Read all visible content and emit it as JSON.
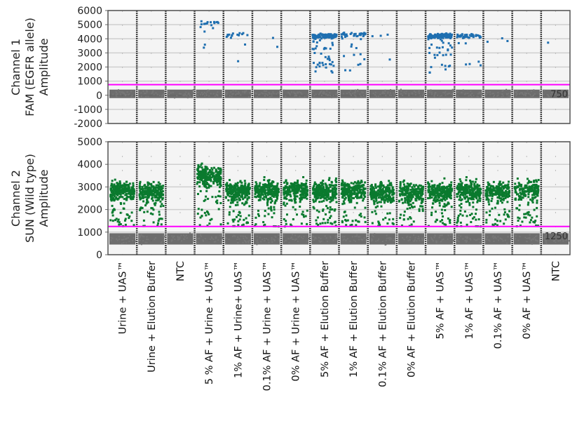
{
  "chart_data": [
    {
      "type": "scatter",
      "ylabel_lines": [
        "Channel 1",
        "FAM (EGFR allele)",
        "Amplitude"
      ],
      "ylim": [
        -2000,
        6000
      ],
      "yticks": [
        "6000",
        "5000",
        "4000",
        "3000",
        "2000",
        "1000",
        "0",
        "-1000",
        "-2000"
      ],
      "threshold": 750,
      "threshold_label": "750",
      "threshold_color": "#ff00ff",
      "positive_color": "#1f6fb0",
      "negative_color": "#555555",
      "negative_level": 100,
      "wells_positive": [
        {
          "level": 0,
          "count": 0
        },
        {
          "level": 0,
          "count": 0
        },
        {
          "level": 0,
          "count": 0
        },
        {
          "level": 5100,
          "count": 18
        },
        {
          "level": 4300,
          "count": 16
        },
        {
          "level": 0,
          "count": 2
        },
        {
          "level": 0,
          "count": 0
        },
        {
          "level": 4200,
          "count": 160
        },
        {
          "level": 4300,
          "count": 45
        },
        {
          "level": 4200,
          "count": 4
        },
        {
          "level": 0,
          "count": 0
        },
        {
          "level": 4200,
          "count": 150
        },
        {
          "level": 4200,
          "count": 50
        },
        {
          "level": 3900,
          "count": 3
        },
        {
          "level": 0,
          "count": 0
        },
        {
          "level": 4200,
          "count": 1
        }
      ]
    },
    {
      "type": "scatter",
      "ylabel_lines": [
        "Channel 2",
        "SUN (Wild type)",
        "Amplitude"
      ],
      "ylim": [
        0,
        5000
      ],
      "yticks": [
        "5000",
        "4000",
        "3000",
        "2000",
        "1000",
        "0"
      ],
      "threshold": 1250,
      "threshold_label": "1250",
      "threshold_color": "#ff00ff",
      "positive_color": "#0a7a2e",
      "negative_color": "#555555",
      "negative_level": 700,
      "wells_positive": [
        {
          "level": 2800,
          "count": 260
        },
        {
          "level": 2800,
          "count": 240
        },
        {
          "level": 0,
          "count": 0
        },
        {
          "level": 3500,
          "count": 260
        },
        {
          "level": 2850,
          "count": 260
        },
        {
          "level": 2850,
          "count": 240
        },
        {
          "level": 2850,
          "count": 240
        },
        {
          "level": 2850,
          "count": 260
        },
        {
          "level": 2850,
          "count": 240
        },
        {
          "level": 2750,
          "count": 220
        },
        {
          "level": 2750,
          "count": 220
        },
        {
          "level": 2800,
          "count": 240
        },
        {
          "level": 2850,
          "count": 240
        },
        {
          "level": 2800,
          "count": 200
        },
        {
          "level": 2900,
          "count": 180
        },
        {
          "level": 0,
          "count": 0
        }
      ]
    }
  ],
  "x_labels": [
    "Urine + UAS™",
    "Urine + Elution Buffer",
    "NTC",
    "5 % AF + Urine + UAS™",
    "1% AF + Urine+ UAS™",
    "0.1% AF + Urine + UAS™",
    "0% AF + Urine + UAS™",
    "5% AF + Elution Buffer",
    "1% AF + Elution Buffer",
    "0.1% AF + Elution Buffer",
    "0% AF + Elution Buffer",
    "5% AF +  UAS™",
    "1% AF +  UAS™",
    "0.1% AF +  UAS™",
    "0% AF +  UAS™",
    "NTC"
  ]
}
